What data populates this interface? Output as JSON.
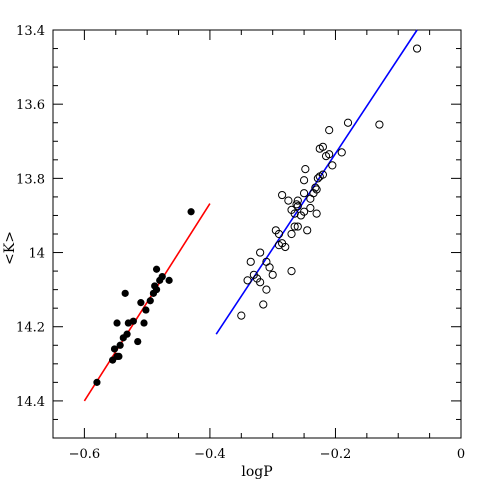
{
  "chart_data": {
    "type": "scatter",
    "xlabel": "logP",
    "ylabel": "<K>",
    "xlim": [
      -0.65,
      0.0
    ],
    "ylim": [
      14.5,
      13.4
    ],
    "y_inverted": true,
    "grid": false,
    "x_ticks": [
      -0.6,
      -0.4,
      -0.2,
      0
    ],
    "x_tick_labels": [
      "−0.6",
      "−0.4",
      "−0.2",
      "0"
    ],
    "y_ticks": [
      13.4,
      13.6,
      13.8,
      14,
      14.2,
      14.4
    ],
    "y_tick_labels": [
      "13.4",
      "13.6",
      "13.8",
      "14",
      "14.2",
      "14.4"
    ],
    "series": [
      {
        "marker": "filled-circle",
        "color": "#000000",
        "points": [
          [
            -0.58,
            14.35
          ],
          [
            -0.555,
            14.29
          ],
          [
            -0.548,
            14.28
          ],
          [
            -0.545,
            14.28
          ],
          [
            -0.552,
            14.26
          ],
          [
            -0.543,
            14.25
          ],
          [
            -0.538,
            14.23
          ],
          [
            -0.532,
            14.22
          ],
          [
            -0.548,
            14.19
          ],
          [
            -0.53,
            14.19
          ],
          [
            -0.522,
            14.185
          ],
          [
            -0.515,
            14.24
          ],
          [
            -0.502,
            14.155
          ],
          [
            -0.505,
            14.19
          ],
          [
            -0.51,
            14.135
          ],
          [
            -0.535,
            14.11
          ],
          [
            -0.495,
            14.13
          ],
          [
            -0.49,
            14.11
          ],
          [
            -0.485,
            14.1
          ],
          [
            -0.488,
            14.09
          ],
          [
            -0.48,
            14.075
          ],
          [
            -0.476,
            14.065
          ],
          [
            -0.485,
            14.045
          ],
          [
            -0.465,
            14.075
          ],
          [
            -0.43,
            13.89
          ]
        ]
      },
      {
        "marker": "open-circle",
        "color": "#000000",
        "points": [
          [
            -0.35,
            14.17
          ],
          [
            -0.315,
            14.14
          ],
          [
            -0.32,
            14.08
          ],
          [
            -0.34,
            14.075
          ],
          [
            -0.325,
            14.07
          ],
          [
            -0.33,
            14.06
          ],
          [
            -0.335,
            14.025
          ],
          [
            -0.31,
            14.025
          ],
          [
            -0.305,
            14.04
          ],
          [
            -0.31,
            14.1
          ],
          [
            -0.3,
            14.06
          ],
          [
            -0.32,
            14.0
          ],
          [
            -0.29,
            13.95
          ],
          [
            -0.285,
            13.975
          ],
          [
            -0.29,
            13.98
          ],
          [
            -0.295,
            13.94
          ],
          [
            -0.28,
            13.985
          ],
          [
            -0.27,
            13.95
          ],
          [
            -0.265,
            13.93
          ],
          [
            -0.26,
            13.93
          ],
          [
            -0.265,
            13.895
          ],
          [
            -0.26,
            13.875
          ],
          [
            -0.27,
            13.885
          ],
          [
            -0.255,
            13.9
          ],
          [
            -0.25,
            13.89
          ],
          [
            -0.245,
            13.94
          ],
          [
            -0.262,
            13.87
          ],
          [
            -0.26,
            13.86
          ],
          [
            -0.24,
            13.855
          ],
          [
            -0.25,
            13.84
          ],
          [
            -0.25,
            13.805
          ],
          [
            -0.248,
            13.775
          ],
          [
            -0.23,
            13.83
          ],
          [
            -0.232,
            13.825
          ],
          [
            -0.228,
            13.8
          ],
          [
            -0.225,
            13.795
          ],
          [
            -0.22,
            13.79
          ],
          [
            -0.235,
            13.84
          ],
          [
            -0.24,
            13.88
          ],
          [
            -0.23,
            13.895
          ],
          [
            -0.27,
            14.05
          ],
          [
            -0.285,
            13.845
          ],
          [
            -0.275,
            13.86
          ],
          [
            -0.215,
            13.74
          ],
          [
            -0.205,
            13.765
          ],
          [
            -0.21,
            13.735
          ],
          [
            -0.225,
            13.72
          ],
          [
            -0.22,
            13.715
          ],
          [
            -0.21,
            13.67
          ],
          [
            -0.19,
            13.73
          ],
          [
            -0.18,
            13.65
          ],
          [
            -0.13,
            13.655
          ],
          [
            -0.07,
            13.45
          ]
        ]
      }
    ],
    "fit_lines": [
      {
        "color": "#ff0000",
        "from": [
          -0.6,
          14.4
        ],
        "to": [
          -0.4,
          13.868
        ]
      },
      {
        "color": "#0000ff",
        "from": [
          -0.39,
          14.22
        ],
        "to": [
          -0.07,
          13.4
        ]
      }
    ]
  }
}
